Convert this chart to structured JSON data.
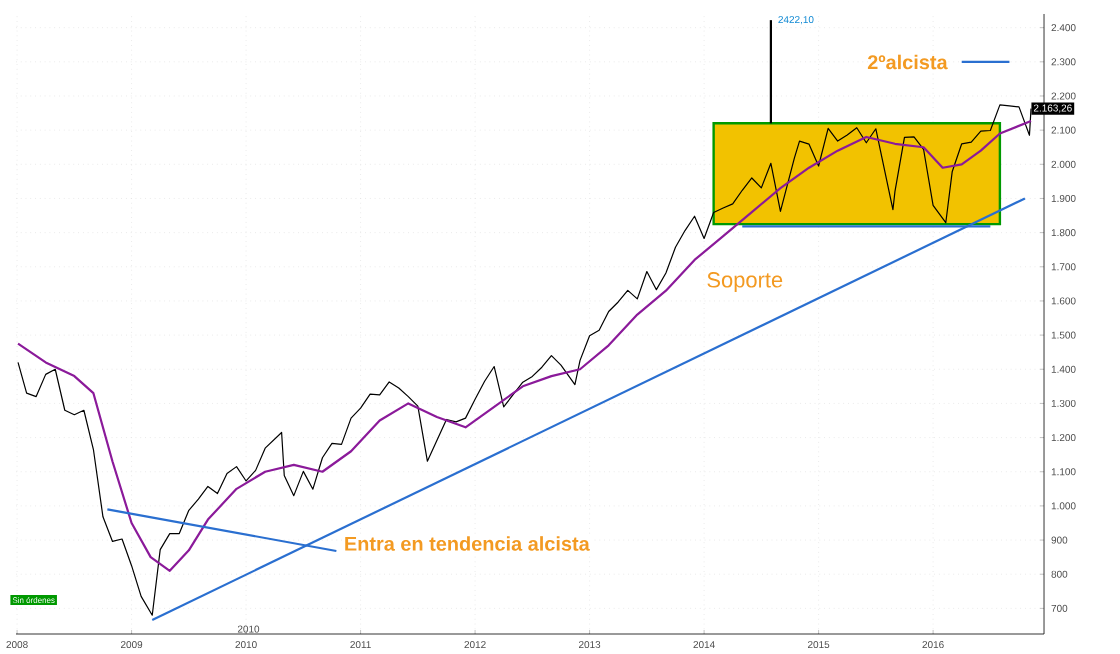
{
  "chart_data": {
    "type": "line",
    "xlim": [
      "2007-12-28",
      "2016-12-20"
    ],
    "ylim": [
      625,
      2440
    ],
    "xticks": [
      {
        "value": "2008-01-01",
        "label": "2008"
      },
      {
        "value": "2009-01-01",
        "label": "2009"
      },
      {
        "value": "2010-01-01",
        "label": "2010"
      },
      {
        "value": "2011-01-01",
        "label": "2011"
      },
      {
        "value": "2012-01-01",
        "label": "2012"
      },
      {
        "value": "2013-01-01",
        "label": "2013"
      },
      {
        "value": "2014-01-01",
        "label": "2014"
      },
      {
        "value": "2015-01-01",
        "label": "2015"
      },
      {
        "value": "2016-01-01",
        "label": "2016"
      }
    ],
    "yticks": [
      700,
      800,
      900,
      {
        "value": 1000,
        "label": "1.000"
      },
      {
        "value": 1100,
        "label": "1.100"
      },
      {
        "value": 1200,
        "label": "1.200"
      },
      {
        "value": 1300,
        "label": "1.300"
      },
      {
        "value": 1400,
        "label": "1.400"
      },
      {
        "value": 1500,
        "label": "1.500"
      },
      {
        "value": 1600,
        "label": "1.600"
      },
      {
        "value": 1700,
        "label": "1.700"
      },
      {
        "value": 1800,
        "label": "1.800"
      },
      {
        "value": 1900,
        "label": "1.900"
      },
      {
        "value": 2000,
        "label": "2.000"
      },
      {
        "value": 2100,
        "label": "2.100"
      },
      {
        "value": 2200,
        "label": "2.200"
      },
      {
        "value": 2300,
        "label": "2.300"
      },
      {
        "value": 2400,
        "label": "2.400"
      }
    ],
    "grid": true,
    "series": [
      {
        "type": "bar",
        "color": "#f2c200",
        "x": [
          "2015-05-01"
        ],
        "base": [
          1825
        ],
        "values": [
          295
        ]
      },
      {
        "color": "#000000",
        "x": [
          "2008-01-04",
          "2008-02-01",
          "2008-03-01",
          "2008-04-01",
          "2008-05-01",
          "2008-06-01",
          "2008-07-01",
          "2008-08-01",
          "2008-09-01",
          "2008-10-01",
          "2008-11-01",
          "2008-12-01",
          "2009-01-01",
          "2009-02-01",
          "2009-03-06",
          "2009-04-01",
          "2009-05-01",
          "2009-06-01",
          "2009-07-01",
          "2009-08-01",
          "2009-09-01",
          "2009-10-01",
          "2009-11-01",
          "2009-12-01",
          "2010-01-01",
          "2010-02-01",
          "2010-03-01",
          "2010-04-23",
          "2010-05-01",
          "2010-06-01",
          "2010-07-01",
          "2010-08-01",
          "2010-09-01",
          "2010-10-01",
          "2010-11-01",
          "2010-12-01",
          "2011-01-01",
          "2011-02-01",
          "2011-03-01",
          "2011-04-01",
          "2011-05-01",
          "2011-06-01",
          "2011-07-01",
          "2011-08-01",
          "2011-10-01",
          "2011-11-01",
          "2011-12-01",
          "2012-01-01",
          "2012-02-01",
          "2012-03-01",
          "2012-04-01",
          "2012-06-01",
          "2012-07-01",
          "2012-08-01",
          "2012-09-01",
          "2012-10-01",
          "2012-11-15",
          "2012-12-01",
          "2013-01-01",
          "2013-02-01",
          "2013-03-01",
          "2013-04-01",
          "2013-05-01",
          "2013-06-01",
          "2013-07-01",
          "2013-08-01",
          "2013-09-01",
          "2013-10-01",
          "2013-11-01",
          "2013-12-01",
          "2014-01-01",
          "2014-02-01",
          "2014-03-01",
          "2014-04-01",
          "2014-05-01",
          "2014-06-01",
          "2014-07-01",
          "2014-08-01",
          "2014-09-01",
          "2014-10-15",
          "2014-11-01",
          "2014-12-01",
          "2015-01-01",
          "2015-02-01",
          "2015-03-01",
          "2015-04-01",
          "2015-05-01",
          "2015-06-01",
          "2015-07-01",
          "2015-08-25",
          "2015-09-01",
          "2015-10-01",
          "2015-11-01",
          "2015-12-01",
          "2016-01-01",
          "2016-02-11",
          "2016-03-01",
          "2016-04-01",
          "2016-05-01",
          "2016-06-01",
          "2016-07-01",
          "2016-08-01",
          "2016-09-01",
          "2016-10-01",
          "2016-11-04",
          "2016-11-09"
        ],
        "values": [
          1420,
          1330,
          1320,
          1385,
          1400,
          1280,
          1267,
          1280,
          1165,
          968,
          896,
          903,
          825,
          735,
          680,
          872,
          919,
          919,
          987,
          1020,
          1057,
          1036,
          1095,
          1115,
          1073,
          1104,
          1169,
          1215,
          1089,
          1030,
          1101,
          1049,
          1141,
          1183,
          1180,
          1257,
          1286,
          1327,
          1325,
          1363,
          1345,
          1320,
          1292,
          1131,
          1253,
          1246,
          1257,
          1312,
          1365,
          1408,
          1290,
          1362,
          1379,
          1406,
          1440,
          1412,
          1355,
          1426,
          1498,
          1514,
          1569,
          1597,
          1631,
          1606,
          1686,
          1633,
          1682,
          1757,
          1806,
          1848,
          1783,
          1859,
          1872,
          1884,
          1924,
          1960,
          1931,
          2003,
          1862,
          2018,
          2068,
          2059,
          1995,
          2105,
          2068,
          2086,
          2107,
          2063,
          2104,
          1867,
          1920,
          2079,
          2080,
          2044,
          1880,
          1829,
          1978,
          2060,
          2065,
          2097,
          2099,
          2174,
          2171,
          2168,
          2085,
          2163
        ]
      },
      {
        "color": "#8b1a9a",
        "x": [
          "2008-01-04",
          "2008-04-01",
          "2008-07-01",
          "2008-09-01",
          "2008-11-01",
          "2009-01-01",
          "2009-03-01",
          "2009-05-01",
          "2009-07-01",
          "2009-09-01",
          "2009-12-01",
          "2010-03-01",
          "2010-06-01",
          "2010-09-01",
          "2010-12-01",
          "2011-03-01",
          "2011-06-01",
          "2011-09-01",
          "2011-12-01",
          "2012-03-01",
          "2012-06-01",
          "2012-09-01",
          "2012-12-01",
          "2013-03-01",
          "2013-06-01",
          "2013-09-01",
          "2013-12-01",
          "2014-03-01",
          "2014-06-01",
          "2014-09-01",
          "2014-12-01",
          "2015-03-01",
          "2015-06-01",
          "2015-09-01",
          "2015-12-01",
          "2016-02-01",
          "2016-04-01",
          "2016-06-01",
          "2016-08-01",
          "2016-11-09"
        ],
        "values": [
          1475,
          1420,
          1380,
          1330,
          1130,
          950,
          850,
          810,
          870,
          960,
          1050,
          1100,
          1120,
          1100,
          1160,
          1250,
          1300,
          1260,
          1230,
          1290,
          1350,
          1380,
          1400,
          1470,
          1560,
          1630,
          1720,
          1790,
          1860,
          1930,
          1990,
          2040,
          2080,
          2060,
          2050,
          1990,
          2000,
          2040,
          2090,
          2127
        ]
      },
      {
        "color": "#2a6fd0",
        "x": [
          "2009-03-06",
          "2016-10-20"
        ],
        "values": [
          666,
          1900
        ]
      },
      {
        "color": "#2a6fd0",
        "x": [
          "2008-10-15",
          "2010-10-15"
        ],
        "values": [
          990,
          868
        ]
      },
      {
        "color": "#2a6fd0",
        "x": [
          "2014-05-01",
          "2016-07-01"
        ],
        "values": [
          1818,
          1818
        ]
      },
      {
        "color": "#2a6fd0",
        "x": [
          "2016-04-01",
          "2016-09-01"
        ],
        "values": [
          2300,
          2300
        ]
      },
      {
        "color": "#000000",
        "x": [
          "2014-08-01",
          "2014-08-01"
        ],
        "values": [
          2120,
          2422
        ]
      }
    ],
    "annotations": [
      "Sin órdenes",
      "2010",
      "Soporte",
      "2ºalcista",
      {
        "text": "Entra en tendencia alcista",
        "x": "2010-11-01",
        "y": 890
      },
      {
        "text": "2422,10",
        "x": "2014-08-01",
        "y": 2422
      },
      {
        "text": "2.163,26",
        "x": "2016-11-09",
        "y": 2163
      }
    ]
  }
}
